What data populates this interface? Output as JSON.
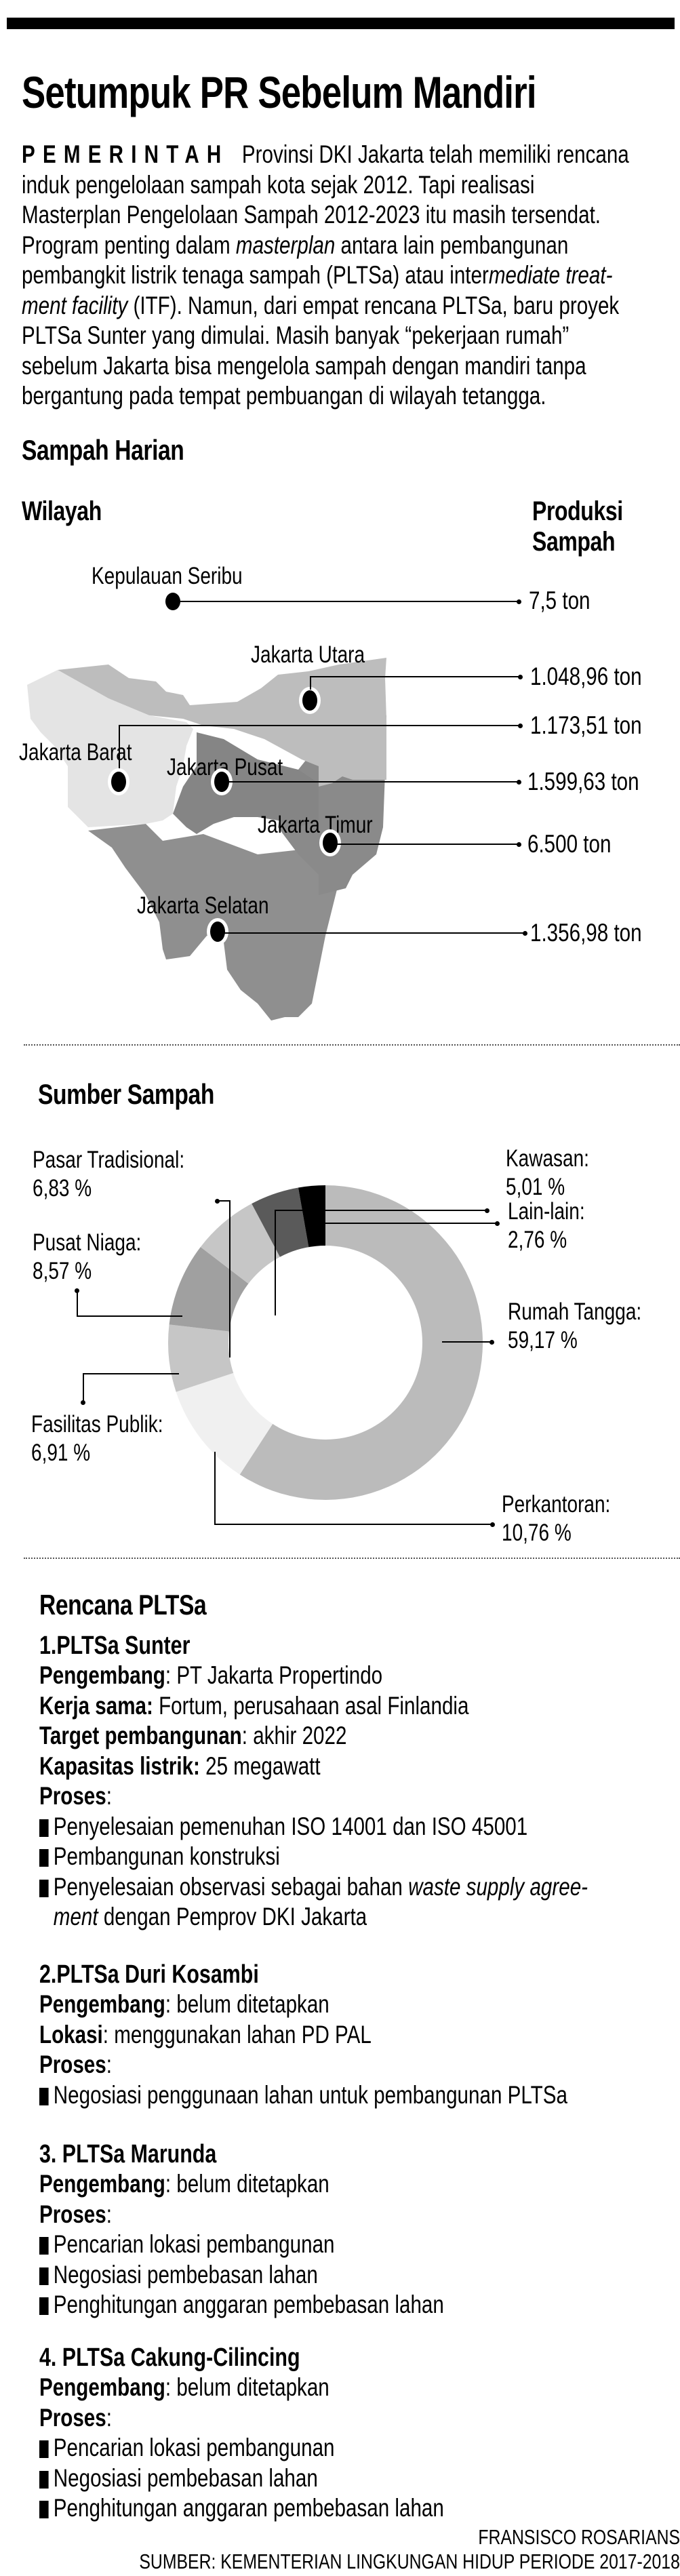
{
  "header": {
    "title": "Setumpuk PR Sebelum Mandiri",
    "kicker": "PEMERINTAH",
    "lede_lines": [
      " Provinsi DKI Jakarta telah memiliki rencana",
      "induk pengelolaan sampah kota sejak 2012. Tapi realisasi",
      "Masterplan Pengelolaan Sampah 2012-2023 itu masih tersendat.",
      [
        "Program penting dalam ",
        "masterplan",
        " antara lain pembangunan"
      ],
      [
        "pembangkit listrik tenaga sampah (PLTSa) atau inter",
        "mediate treat-"
      ],
      [
        "ment facility",
        " (ITF). Namun, dari empat rencana PLTSa, baru proyek"
      ],
      "PLTSa Sunter yang dimulai. Masih banyak “pekerjaan rumah”",
      "sebelum Jakarta bisa mengelola sampah dengan mandiri tanpa",
      "bergantung pada tempat pembuangan di wilayah tetangga."
    ]
  },
  "sampah_harian": {
    "title": "Sampah Harian",
    "col_left": "Wilayah",
    "col_right_1": "Produksi",
    "col_right_2": "Sampah",
    "regions": [
      {
        "name": "Kepulauan Seribu",
        "value": "7,5 ton"
      },
      {
        "name": "Jakarta Utara",
        "value": "1.048,96 ton"
      },
      {
        "name": "Jakarta Barat",
        "value": "1.173,51 ton"
      },
      {
        "name": "Jakarta Pusat",
        "value": "1.599,63 ton"
      },
      {
        "name": "Jakarta Timur",
        "value": "6.500 ton"
      },
      {
        "name": "Jakarta Selatan",
        "value": "1.356,98 ton"
      }
    ],
    "map_colors": {
      "jakarta_barat": "#e4e4e4",
      "jakarta_utara": "#bdbdbd",
      "jakarta_pusat": "#858585",
      "jakarta_timur": "#8c8c8c",
      "jakarta_selatan": "#8f8f8f"
    }
  },
  "sumber_sampah": {
    "title": "Sumber Sampah",
    "labels": [
      {
        "name": "Pasar Tradisional:",
        "value": "6,83 %"
      },
      {
        "name": "Kawasan:",
        "value": "5,01 %"
      },
      {
        "name": "Lain-lain:",
        "value": "2,76 %"
      },
      {
        "name": "Pusat Niaga:",
        "value": "8,57 %"
      },
      {
        "name": "Rumah Tangga:",
        "value": "59,17 %"
      },
      {
        "name": "Fasilitas Publik:",
        "value": "6,91 %"
      },
      {
        "name": "Perkantoran:",
        "value": "10,76 %"
      }
    ]
  },
  "chart_data": [
    {
      "type": "bar",
      "title": "Sampah Harian",
      "xlabel": "Wilayah",
      "ylabel": "Produksi Sampah (ton)",
      "categories": [
        "Kepulauan Seribu",
        "Jakarta Utara",
        "Jakarta Barat",
        "Jakarta Pusat",
        "Jakarta Timur",
        "Jakarta Selatan"
      ],
      "values": [
        7.5,
        1048.96,
        1173.51,
        1599.63,
        6500,
        1356.98
      ],
      "note": "Rendered as annotated choropleth map of Jakarta with leader lines to values"
    },
    {
      "type": "pie",
      "title": "Sumber Sampah",
      "donut": true,
      "unit": "%",
      "categories": [
        "Rumah Tangga",
        "Perkantoran",
        "Fasilitas Publik",
        "Pusat Niaga",
        "Pasar Tradisional",
        "Kawasan",
        "Lain-lain"
      ],
      "values": [
        59.17,
        10.76,
        6.91,
        8.57,
        6.83,
        5.01,
        2.76
      ],
      "colors": [
        "#bbbbbb",
        "#f0f0f0",
        "#c6c6c6",
        "#a0a0a0",
        "#c6c6c6",
        "#5a5a5a",
        "#000000"
      ],
      "start_angle": "12 o'clock, clockwise"
    }
  ],
  "rencana": {
    "title": "Rencana PLTSa",
    "plants": [
      {
        "heading": "1.PLTSa Sunter",
        "fields": [
          {
            "label": "Pengembang",
            "sep": ": ",
            "value": "PT Jakarta Propertindo"
          },
          {
            "label": "Kerja sama:",
            "sep": " ",
            "value": "Fortum, perusahaan asal Finlandia"
          },
          {
            "label": "Target pembangunan",
            "sep": ": ",
            "value": "akhir 2022"
          },
          {
            "label": "Kapasitas listrik:",
            "sep": " ",
            "value": "25 megawatt"
          }
        ],
        "proses_label": "Proses",
        "proses": [
          "Penyelesaian pemenuhan ISO 14001 dan ISO 45001",
          "Pembangunan konstruksi"
        ],
        "proses_last": {
          "pre": "Penyelesaian observasi sebagai bahan ",
          "ital": "waste supply agree-",
          "ital2": "ment",
          "post": " dengan Pemprov DKI Jakarta"
        }
      },
      {
        "heading": "2.PLTSa Duri Kosambi",
        "fields": [
          {
            "label": "Pengembang",
            "sep": ": ",
            "value": "belum ditetapkan"
          },
          {
            "label": "Lokasi",
            "sep": ": ",
            "value": "menggunakan lahan PD PAL"
          }
        ],
        "proses_label": "Proses",
        "proses": [
          "Negosiasi penggunaan lahan untuk pembangunan PLTSa"
        ]
      },
      {
        "heading": "3. PLTSa Marunda",
        "fields": [
          {
            "label": "Pengembang",
            "sep": ": ",
            "value": "belum ditetapkan"
          }
        ],
        "proses_label": "Proses",
        "proses": [
          "Pencarian lokasi pembangunan",
          "Negosiasi pembebasan lahan",
          "Penghitungan anggaran pembebasan lahan"
        ]
      },
      {
        "heading": "4. PLTSa Cakung-Cilincing",
        "fields": [
          {
            "label": "Pengembang",
            "sep": ": ",
            "value": "belum ditetapkan"
          }
        ],
        "proses_label": "Proses",
        "proses": [
          "Pencarian lokasi pembangunan",
          "Negosiasi pembebasan lahan",
          "Penghitungan anggaran pembebasan lahan"
        ]
      }
    ]
  },
  "footer": {
    "author": "FRANSISCO ROSARIANS",
    "source": "SUMBER: KEMENTERIAN LINGKUNGAN HIDUP PERIODE 2017-2018"
  }
}
